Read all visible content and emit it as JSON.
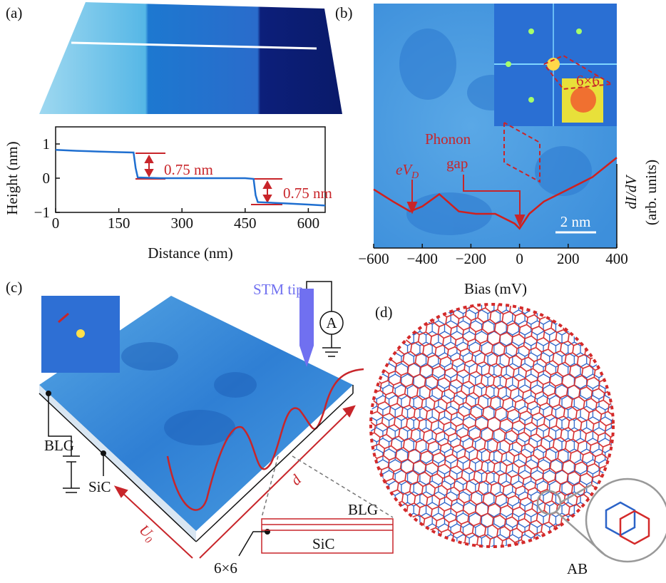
{
  "panel_labels": [
    "(a)",
    "(b)",
    "(c)",
    "(d)"
  ],
  "chart_data": [
    {
      "type": "line",
      "xlabel": "Distance (nm)",
      "ylabel": "Height (nm)",
      "x": [
        0,
        50,
        100,
        150,
        185,
        190,
        195,
        250,
        300,
        350,
        400,
        450,
        470,
        475,
        480,
        550,
        600,
        640
      ],
      "series": [
        {
          "color": "#1f6fd0",
          "values": [
            0.83,
            0.8,
            0.78,
            0.76,
            0.75,
            0.3,
            0.02,
            0.0,
            0.0,
            0.0,
            0.0,
            0.0,
            -0.02,
            -0.5,
            -0.7,
            -0.74,
            -0.77,
            -0.8
          ]
        }
      ],
      "xlim": [
        0,
        640
      ],
      "ylim": [
        -1,
        1.5
      ],
      "xticks": [
        0,
        150,
        300,
        450,
        600
      ],
      "yticks": [
        {
          "value": -1,
          "label": "−1"
        },
        0,
        1
      ],
      "annotations": [
        "0.75 nm",
        "0.75 nm"
      ]
    },
    {
      "type": "line",
      "xlabel": "Bias (mV)",
      "ylabel_lines": [
        "dI/dV",
        "(arb. units)"
      ],
      "x": [
        -600,
        -520,
        -450,
        -400,
        -330,
        -250,
        -180,
        -100,
        -20,
        0,
        40,
        100,
        200,
        300,
        400
      ],
      "series": [
        {
          "color": "#d0201e",
          "values": [
            0.24,
            0.19,
            0.15,
            0.17,
            0.22,
            0.15,
            0.14,
            0.14,
            0.1,
            0.08,
            0.14,
            0.19,
            0.24,
            0.29,
            0.37
          ]
        }
      ],
      "xlim": [
        -600,
        400
      ],
      "ylim": [
        0,
        1
      ],
      "xticks": [
        {
          "value": -600,
          "label": "−600"
        },
        {
          "value": -400,
          "label": "−400"
        },
        {
          "value": -200,
          "label": "−200"
        },
        0,
        200,
        400
      ],
      "annotation_lines": [
        "Phonon",
        "gap"
      ],
      "dirac_label": "eV",
      "dirac_sub": "D",
      "scale_bar": "2 nm",
      "inset_label": "6×6"
    }
  ],
  "panel_c": {
    "tip": "STM tip",
    "meter": "A",
    "blg": "BLG",
    "sic": "SiC",
    "distance": "d",
    "potential": "U",
    "potential_sub": "0",
    "stack_top": "BLG",
    "stack_bottom": "SiC",
    "interface": "6×6"
  },
  "panel_d": {
    "stacking": "AB"
  }
}
